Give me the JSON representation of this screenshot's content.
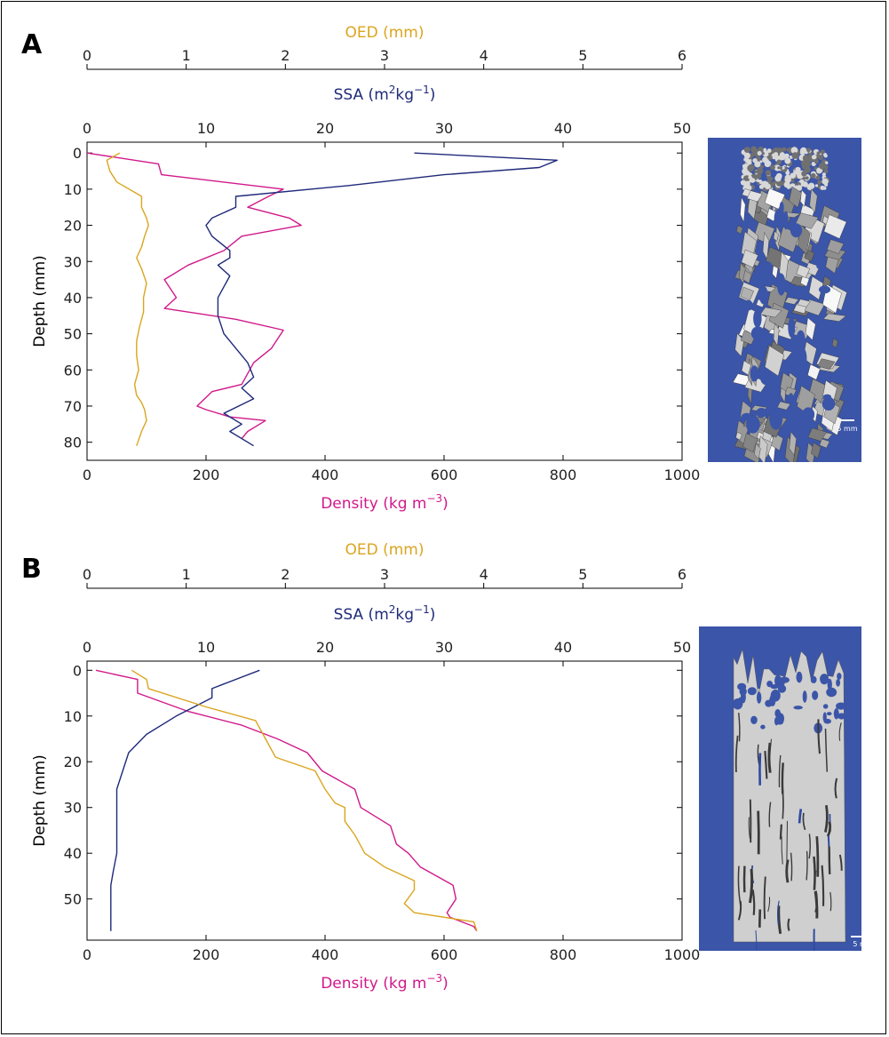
{
  "colors": {
    "oed": "#DAA520",
    "ssa": "#1F2A7A",
    "density": "#D0198A",
    "micro_bg": "#3B55A8"
  },
  "panels": [
    {
      "label": "A",
      "oed_axis": {
        "label": "OED (mm)",
        "ticks": [
          "0",
          "1",
          "2",
          "3",
          "4",
          "5",
          "6"
        ]
      },
      "ssa_axis": {
        "label_main": "SSA (m",
        "sup1": "2",
        "mid": "kg",
        "sup2": "−1",
        "end": ")",
        "ticks": [
          "0",
          "10",
          "20",
          "30",
          "40",
          "50"
        ]
      },
      "density_axis": {
        "label_main": "Density (kg m",
        "sup": "−3",
        "end": ")",
        "ticks": [
          "0",
          "200",
          "400",
          "600",
          "800",
          "1000"
        ]
      },
      "depth_axis": {
        "label": "Depth (mm)",
        "ticks": [
          "0",
          "10",
          "20",
          "30",
          "40",
          "50",
          "60",
          "70",
          "80"
        ]
      },
      "scale_bar": "5 mm",
      "micro_icon": "snow-microstructure-image-A"
    },
    {
      "label": "B",
      "oed_axis": {
        "label": "OED (mm)",
        "ticks": [
          "0",
          "1",
          "2",
          "3",
          "4",
          "5",
          "6"
        ]
      },
      "ssa_axis": {
        "label_main": "SSA (m",
        "sup1": "2",
        "mid": "kg",
        "sup2": "−1",
        "end": ")",
        "ticks": [
          "0",
          "10",
          "20",
          "30",
          "40",
          "50"
        ]
      },
      "density_axis": {
        "label_main": "Density (kg m",
        "sup": "−3",
        "end": ")",
        "ticks": [
          "0",
          "200",
          "400",
          "600",
          "800",
          "1000"
        ]
      },
      "depth_axis": {
        "label": "Depth (mm)",
        "ticks": [
          "0",
          "10",
          "20",
          "30",
          "40",
          "50"
        ]
      },
      "scale_bar": "5 mm",
      "micro_icon": "snow-microstructure-image-B"
    }
  ],
  "chart_data": [
    {
      "type": "line",
      "panel": "A",
      "ylabel": "Depth (mm)",
      "ylim": [
        85,
        -3
      ],
      "density_xlim": [
        0,
        1000
      ],
      "ssa_xlim": [
        0,
        50
      ],
      "oed_xlim": [
        0,
        6
      ],
      "series": [
        {
          "name": "Density",
          "axis": "density",
          "x": [
            0,
            120,
            125,
            330,
            305,
            270,
            340,
            360,
            260,
            230,
            170,
            130,
            150,
            130,
            250,
            330,
            310,
            280,
            260,
            210,
            185,
            200,
            240,
            300,
            270,
            260
          ],
          "y": [
            0,
            3,
            6,
            10,
            12,
            15,
            18,
            20,
            23,
            27,
            31,
            35,
            40,
            43,
            46,
            49,
            54,
            58,
            64,
            66,
            70,
            71,
            73,
            74,
            77,
            79
          ]
        },
        {
          "name": "SSA",
          "axis": "ssa",
          "x": [
            27.5,
            39.5,
            38,
            30,
            22,
            12.5,
            12.5,
            10.5,
            10,
            10.5,
            12,
            12,
            11,
            12,
            11.5,
            11,
            11,
            11.5,
            13.5,
            14,
            13,
            14,
            11.5,
            13,
            12,
            14
          ],
          "y": [
            0,
            2,
            4,
            6,
            9,
            12,
            15,
            18,
            20,
            23,
            27,
            29,
            31,
            34,
            37,
            40,
            45,
            50,
            58,
            62,
            65,
            68,
            72,
            75,
            77,
            81
          ]
        },
        {
          "name": "OED",
          "axis": "oed",
          "x": [
            0.33,
            0.2,
            0.23,
            0.3,
            0.55,
            0.55,
            0.6,
            0.62,
            0.58,
            0.55,
            0.5,
            0.55,
            0.6,
            0.57,
            0.57,
            0.53,
            0.5,
            0.5,
            0.52,
            0.48,
            0.5,
            0.55,
            0.58,
            0.6,
            0.55,
            0.5
          ],
          "y": [
            0,
            2,
            5,
            8,
            12,
            15,
            18,
            20,
            23,
            26,
            29,
            32,
            36,
            40,
            44,
            48,
            52,
            56,
            60,
            64,
            67,
            69,
            71,
            74,
            77,
            81
          ]
        }
      ]
    },
    {
      "type": "line",
      "panel": "B",
      "ylabel": "Depth (mm)",
      "ylim": [
        59,
        -2
      ],
      "density_xlim": [
        0,
        1000
      ],
      "ssa_xlim": [
        0,
        50
      ],
      "oed_xlim": [
        0,
        6
      ],
      "series": [
        {
          "name": "Density",
          "axis": "density",
          "x": [
            15,
            85,
            85,
            170,
            260,
            320,
            370,
            395,
            450,
            460,
            510,
            520,
            540,
            560,
            615,
            620,
            605,
            610,
            650,
            655
          ],
          "y": [
            0,
            2,
            5,
            9,
            12,
            15,
            18,
            22,
            26,
            30,
            34,
            38,
            40,
            43,
            47,
            50,
            53,
            54,
            56,
            57
          ]
        },
        {
          "name": "SSA",
          "axis": "ssa",
          "x": [
            14.5,
            11.5,
            10.5,
            10.5,
            7.5,
            5,
            3.5,
            3,
            2.5,
            2.5,
            2.5,
            2.5,
            2.2,
            2,
            2,
            2
          ],
          "y": [
            0,
            3,
            4,
            6,
            10,
            14,
            18,
            22,
            26,
            30,
            36,
            40,
            44,
            47,
            51,
            57
          ]
        },
        {
          "name": "OED",
          "axis": "oed",
          "x": [
            0.45,
            0.6,
            0.62,
            1.2,
            1.7,
            1.8,
            1.9,
            2.3,
            2.4,
            2.5,
            2.6,
            2.6,
            2.7,
            2.8,
            3.0,
            3.3,
            3.3,
            3.2,
            3.3,
            3.9,
            3.93
          ],
          "y": [
            0,
            2,
            4,
            8,
            11,
            15,
            19,
            22,
            26,
            29,
            30,
            33,
            36,
            40,
            43,
            46,
            48,
            51,
            53,
            55,
            57
          ]
        }
      ]
    }
  ]
}
